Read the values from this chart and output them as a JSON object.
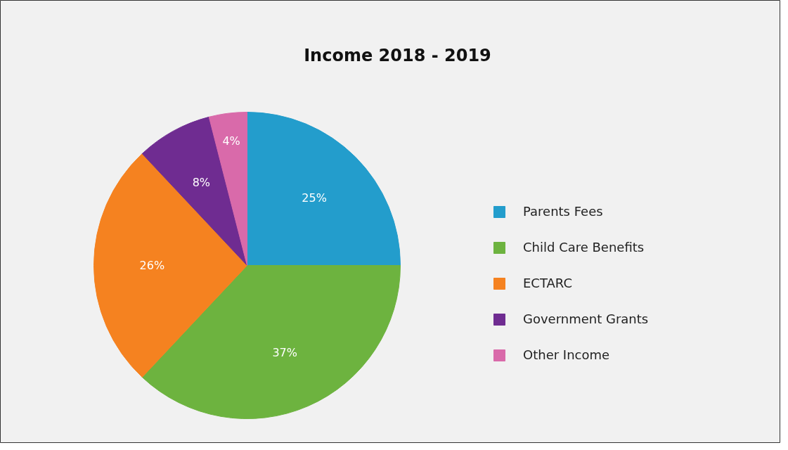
{
  "chart_data": {
    "type": "pie",
    "title": "Income 2018 - 2019",
    "categories": [
      "Parents Fees",
      "Child Care Benefits",
      "ECTARC",
      "Government Grants",
      "Other Income"
    ],
    "values": [
      25,
      37,
      26,
      8,
      4
    ],
    "colors": [
      "#239dcc",
      "#6db33f",
      "#f58220",
      "#6f2c91",
      "#d96aaa"
    ],
    "value_labels": [
      "25%",
      "37%",
      "26%",
      "8%",
      "4%"
    ],
    "legend": "right"
  }
}
